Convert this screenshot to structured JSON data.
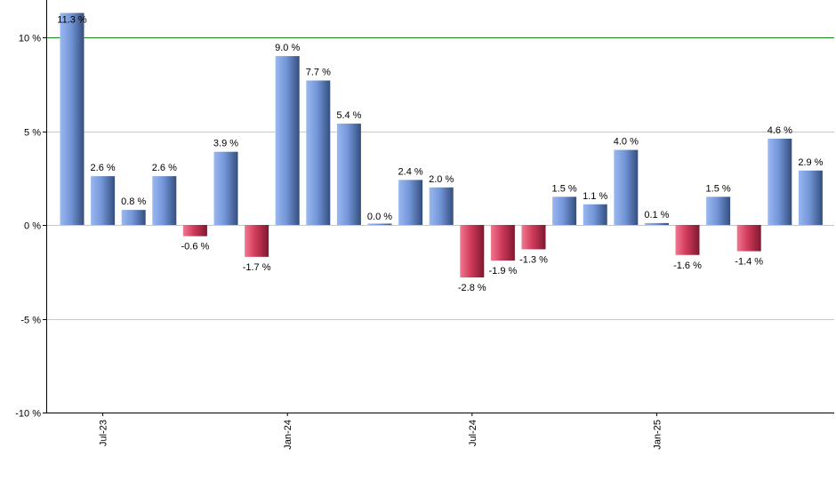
{
  "chart_data": {
    "type": "bar",
    "title": "",
    "xlabel": "",
    "ylabel": "",
    "ylim": [
      -10,
      12
    ],
    "yticks": [
      10,
      5,
      0,
      -5,
      -10
    ],
    "ytick_labels": [
      "10 %",
      "5 %",
      "0 %",
      "-5 %",
      "-10 %"
    ],
    "reference_line": {
      "value": 10,
      "color": "#1a8a1a"
    },
    "grid": true,
    "legend": "none",
    "categories": [
      "Jun-23",
      "Jul-23",
      "Aug-23",
      "Sep-23",
      "Oct-23",
      "Nov-23",
      "Dec-23",
      "Jan-24",
      "Feb-24",
      "Mar-24",
      "Apr-24",
      "May-24",
      "Jun-24",
      "Jul-24",
      "Aug-24",
      "Sep-24",
      "Oct-24",
      "Nov-24",
      "Dec-24",
      "Jan-25",
      "Feb-25",
      "Mar-25",
      "Apr-25",
      "May-25",
      "Jun-25"
    ],
    "values": [
      11.3,
      2.6,
      0.8,
      2.6,
      -0.6,
      3.9,
      -1.7,
      9.0,
      7.7,
      5.4,
      0.0,
      2.4,
      2.0,
      -2.8,
      -1.9,
      -1.3,
      1.5,
      1.1,
      4.0,
      0.1,
      -1.6,
      1.5,
      -1.4,
      4.6,
      2.9
    ],
    "value_labels": [
      "11.3 %",
      "2.6 %",
      "0.8 %",
      "2.6 %",
      "-0.6 %",
      "3.9 %",
      "-1.7 %",
      "9.0 %",
      "7.7 %",
      "5.4 %",
      "0.0 %",
      "2.4 %",
      "2.0 %",
      "-2.8 %",
      "-1.9 %",
      "-1.3 %",
      "1.5 %",
      "1.1 %",
      "4.0 %",
      "0.1 %",
      "-1.6 %",
      "1.5 %",
      "-1.4 %",
      "4.6 %",
      "2.9 %"
    ],
    "xtick_labels": [
      {
        "index": 1,
        "label": "Jul-23"
      },
      {
        "index": 7,
        "label": "Jan-24"
      },
      {
        "index": 13,
        "label": "Jul-24"
      },
      {
        "index": 19,
        "label": "Jan-25"
      }
    ],
    "colors": {
      "positive": "#6f93d8",
      "positive_dark": "#3a5588",
      "negative": "#d04060",
      "negative_dark": "#8a1a34",
      "axis": "#000000",
      "grid": "#c8c8c8"
    }
  }
}
